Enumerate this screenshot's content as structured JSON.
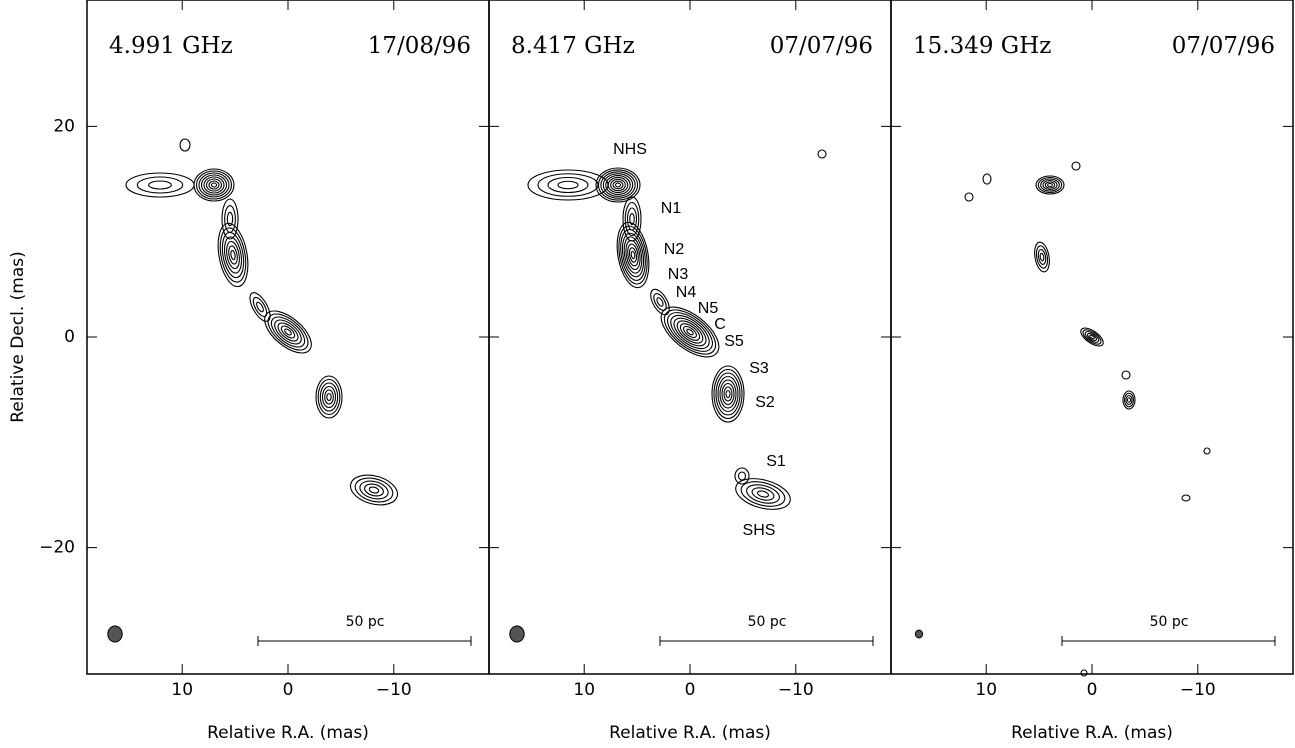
{
  "chart_data": [
    {
      "type": "contour",
      "frequency": "4.991 GHz",
      "date": "17/08/96",
      "x_label": "Relative R.A. (mas)",
      "y_label": "Relative Decl. (mas)",
      "scale_bar": "50 pc",
      "xlim": [
        19,
        -19
      ],
      "ylim": [
        -32,
        32
      ],
      "xticks": [
        10,
        0,
        {
          "value": -10,
          "label": "−10"
        }
      ],
      "yticks": [
        20,
        0,
        {
          "value": -20,
          "label": "−20"
        }
      ]
    },
    {
      "type": "contour",
      "frequency": "8.417 GHz",
      "date": "07/07/96",
      "x_label": "Relative R.A. (mas)",
      "scale_bar": "50 pc",
      "xlim": [
        19,
        -19
      ],
      "ylim": [
        -32,
        32
      ],
      "xticks": [
        10,
        0,
        {
          "value": -10,
          "label": "−10"
        }
      ],
      "yticks": [
        20,
        0,
        -20
      ],
      "annotations": [
        "NHS",
        "N1",
        "N2",
        "N3",
        "N4",
        "N5",
        "C",
        "S5",
        "S3",
        "S2",
        "S1",
        "SHS"
      ]
    },
    {
      "type": "contour",
      "frequency": "15.349 GHz",
      "date": "07/07/96",
      "x_label": "Relative R.A. (mas)",
      "scale_bar": "50 pc",
      "xlim": [
        19,
        -19
      ],
      "ylim": [
        -32,
        32
      ],
      "xticks": [
        10,
        0,
        {
          "value": -10,
          "label": "−10"
        }
      ],
      "yticks": [
        20,
        0,
        -20
      ]
    }
  ]
}
